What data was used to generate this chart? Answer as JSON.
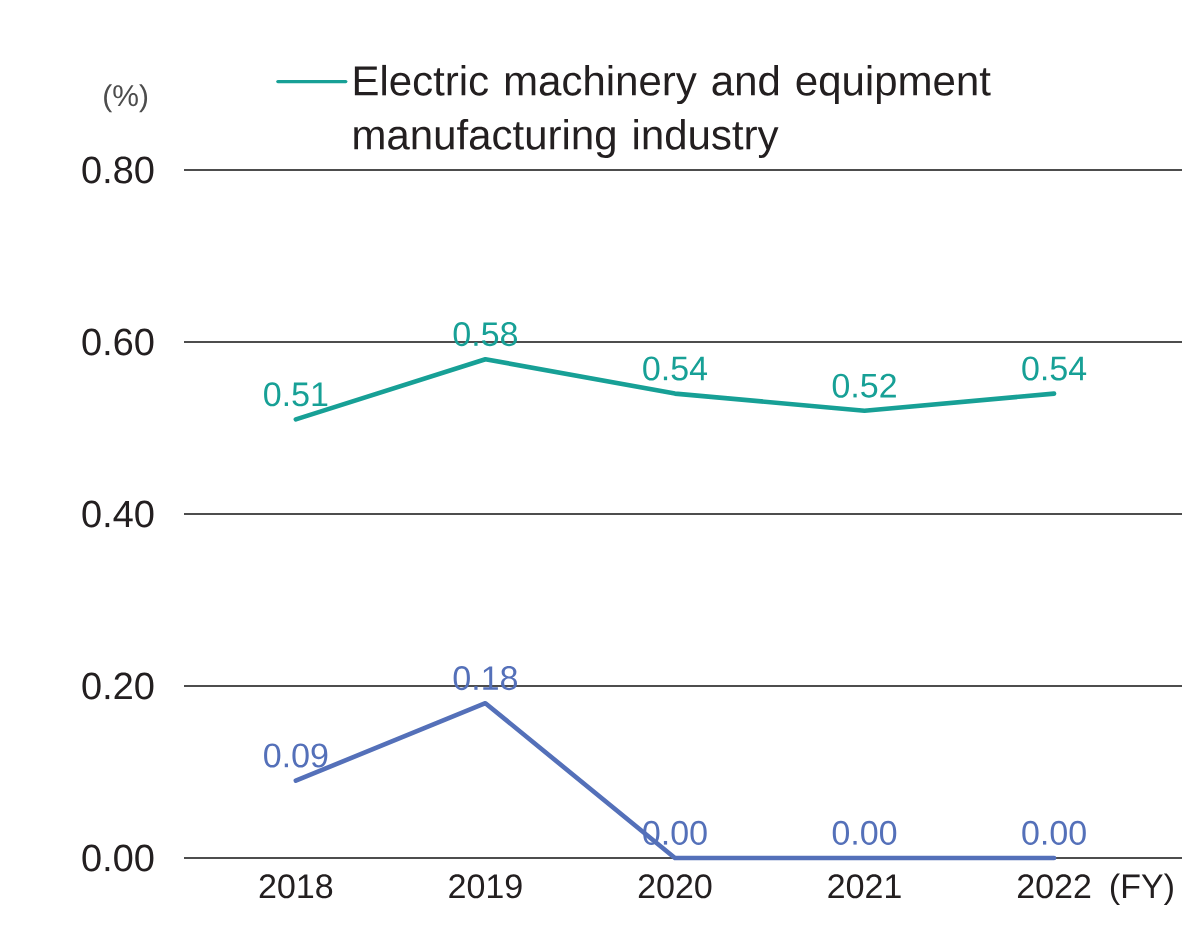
{
  "chart_data": {
    "type": "line",
    "xlabel": "(FY)",
    "ylabel": "(%)",
    "categories": [
      "2018",
      "2019",
      "2020",
      "2021",
      "2022"
    ],
    "series": [
      {
        "color": "#5470b9",
        "values": [
          0.09,
          0.18,
          0.0,
          0.0,
          0.0
        ],
        "value_labels": [
          "0.09",
          "0.18",
          "0.00",
          "0.00",
          "0.00"
        ]
      },
      {
        "name": "Electric machinery and equipment manufacturing industry",
        "color": "#17a096",
        "values": [
          0.51,
          0.58,
          0.54,
          0.52,
          0.54
        ],
        "value_labels": [
          "0.51",
          "0.58",
          "0.54",
          "0.52",
          "0.54"
        ]
      }
    ],
    "ylim": [
      0,
      0.8
    ],
    "yticks": [
      {
        "value": 0,
        "label": "0.00"
      },
      {
        "value": 0.2,
        "label": "0.20"
      },
      {
        "value": 0.4,
        "label": "0.40"
      },
      {
        "value": 0.6,
        "label": "0.60"
      },
      {
        "value": 0.8,
        "label": "0.80"
      }
    ],
    "grid": "y",
    "legend": "top"
  }
}
